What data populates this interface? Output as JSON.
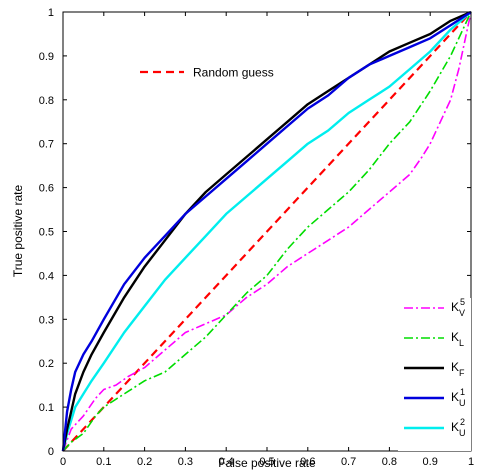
{
  "chart_data": {
    "type": "line",
    "title": "",
    "xlabel": "False positive rate",
    "ylabel": "True positive rate",
    "xlim": [
      0,
      1
    ],
    "ylim": [
      0,
      1
    ],
    "xticks": [
      "0",
      "0.1",
      "0.2",
      "0.3",
      "0.4",
      "0.5",
      "0.6",
      "0.7",
      "0.8",
      "0.9",
      "1"
    ],
    "yticks": [
      "0",
      "0.1",
      "0.2",
      "0.3",
      "0.4",
      "0.5",
      "0.6",
      "0.7",
      "0.8",
      "0.9",
      "1"
    ],
    "grid": false,
    "annotation": "Random guess",
    "legend_position": "bottom-right",
    "series": [
      {
        "legend_base": "K",
        "legend_sub": "V",
        "legend_sup": "5",
        "color": "#ff00ff",
        "dash": "dashdot",
        "width": 1.6,
        "x": [
          0,
          0.02,
          0.05,
          0.08,
          0.1,
          0.13,
          0.16,
          0.2,
          0.25,
          0.3,
          0.35,
          0.4,
          0.45,
          0.5,
          0.55,
          0.6,
          0.65,
          0.7,
          0.75,
          0.8,
          0.85,
          0.88,
          0.9,
          0.93,
          0.95,
          0.97,
          1.0
        ],
        "y": [
          0,
          0.05,
          0.08,
          0.12,
          0.14,
          0.15,
          0.17,
          0.19,
          0.23,
          0.27,
          0.29,
          0.31,
          0.35,
          0.38,
          0.42,
          0.45,
          0.48,
          0.51,
          0.55,
          0.59,
          0.63,
          0.67,
          0.7,
          0.76,
          0.8,
          0.87,
          1.0
        ]
      },
      {
        "legend_base": "K",
        "legend_sub": "L",
        "legend_sup": "",
        "color": "#00dd00",
        "dash": "dashdot",
        "width": 1.6,
        "x": [
          0,
          0.02,
          0.05,
          0.08,
          0.1,
          0.15,
          0.2,
          0.25,
          0.3,
          0.35,
          0.4,
          0.45,
          0.5,
          0.55,
          0.6,
          0.65,
          0.7,
          0.75,
          0.8,
          0.85,
          0.9,
          0.95,
          1.0
        ],
        "y": [
          0,
          0.02,
          0.04,
          0.08,
          0.1,
          0.13,
          0.16,
          0.18,
          0.22,
          0.26,
          0.31,
          0.36,
          0.4,
          0.46,
          0.51,
          0.55,
          0.59,
          0.64,
          0.7,
          0.75,
          0.82,
          0.9,
          1.0
        ]
      },
      {
        "legend_base": "K",
        "legend_sub": "F",
        "legend_sup": "",
        "color": "#000000",
        "dash": "solid",
        "width": 2.4,
        "x": [
          0,
          0.01,
          0.02,
          0.03,
          0.05,
          0.07,
          0.1,
          0.15,
          0.2,
          0.25,
          0.3,
          0.35,
          0.4,
          0.45,
          0.5,
          0.55,
          0.6,
          0.65,
          0.7,
          0.75,
          0.8,
          0.85,
          0.9,
          0.95,
          1.0
        ],
        "y": [
          0,
          0.05,
          0.09,
          0.13,
          0.18,
          0.22,
          0.27,
          0.35,
          0.42,
          0.48,
          0.54,
          0.59,
          0.63,
          0.67,
          0.71,
          0.75,
          0.79,
          0.82,
          0.85,
          0.88,
          0.91,
          0.93,
          0.95,
          0.98,
          1.0
        ]
      },
      {
        "legend_base": "K",
        "legend_sub": "U",
        "legend_sup": "1",
        "color": "#0000dd",
        "dash": "solid",
        "width": 2.4,
        "x": [
          0,
          0.01,
          0.02,
          0.03,
          0.05,
          0.07,
          0.1,
          0.15,
          0.2,
          0.25,
          0.3,
          0.35,
          0.4,
          0.45,
          0.5,
          0.55,
          0.6,
          0.65,
          0.7,
          0.75,
          0.8,
          0.85,
          0.9,
          0.95,
          1.0
        ],
        "y": [
          0,
          0.09,
          0.14,
          0.18,
          0.22,
          0.25,
          0.3,
          0.38,
          0.44,
          0.49,
          0.54,
          0.58,
          0.62,
          0.66,
          0.7,
          0.74,
          0.78,
          0.81,
          0.85,
          0.88,
          0.9,
          0.92,
          0.94,
          0.97,
          1.0
        ]
      },
      {
        "legend_base": "K",
        "legend_sub": "U",
        "legend_sup": "2",
        "color": "#00eeee",
        "dash": "solid",
        "width": 2.4,
        "x": [
          0,
          0.01,
          0.02,
          0.03,
          0.05,
          0.07,
          0.1,
          0.15,
          0.2,
          0.25,
          0.3,
          0.35,
          0.4,
          0.45,
          0.5,
          0.55,
          0.6,
          0.65,
          0.7,
          0.75,
          0.8,
          0.85,
          0.9,
          0.95,
          1.0
        ],
        "y": [
          0,
          0.04,
          0.07,
          0.1,
          0.13,
          0.16,
          0.2,
          0.27,
          0.33,
          0.39,
          0.44,
          0.49,
          0.54,
          0.58,
          0.62,
          0.66,
          0.7,
          0.73,
          0.77,
          0.8,
          0.83,
          0.87,
          0.91,
          0.96,
          1.0
        ]
      },
      {
        "legend_base": "Random guess",
        "role": "annotation",
        "color": "#ff0000",
        "dash": "dashed",
        "width": 2.2,
        "x": [
          0,
          1
        ],
        "y": [
          0,
          1
        ]
      }
    ]
  }
}
